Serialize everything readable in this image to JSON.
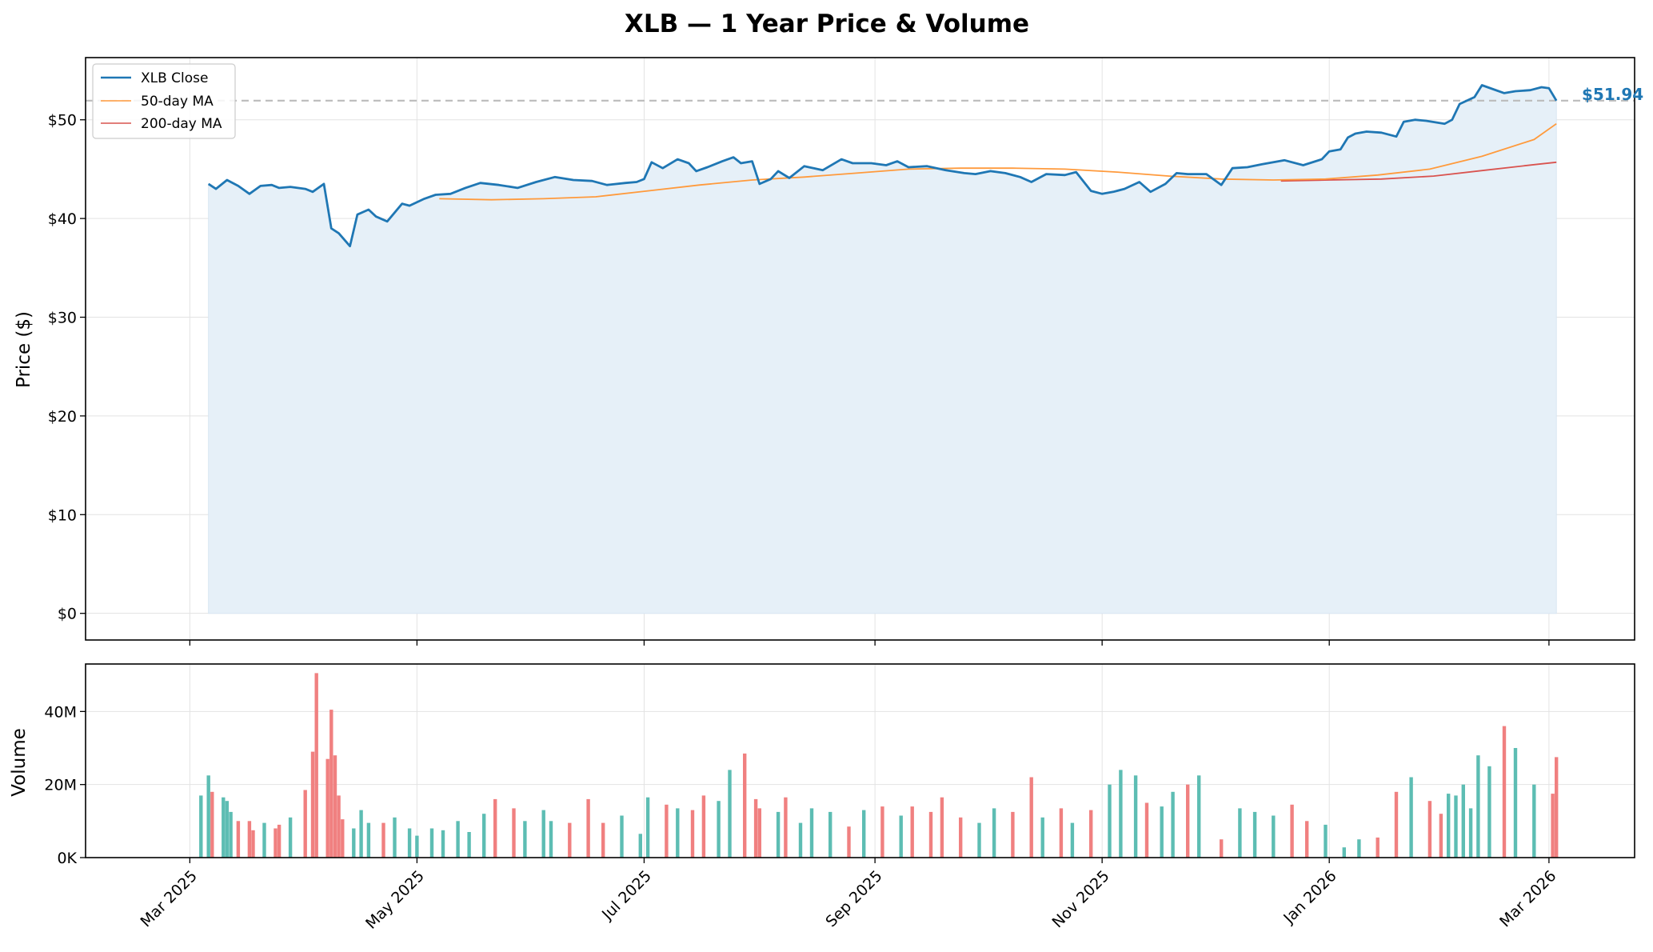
{
  "chart_data": [
    {
      "type": "line",
      "title": "XLB — 1 Year Price & Volume",
      "ylabel": "Price ($)",
      "ylim": [
        -2.7,
        56.3
      ],
      "y_ticks": [
        0,
        10,
        20,
        30,
        40,
        50
      ],
      "y_tick_labels": [
        "$0",
        "$10",
        "$20",
        "$30",
        "$40",
        "$50"
      ],
      "xlim": [
        "2025-02-01",
        "2026-03-24"
      ],
      "x_ticks": [
        "2025-03-01",
        "2025-05-01",
        "2025-07-01",
        "2025-09-01",
        "2025-11-01",
        "2026-01-01",
        "2026-03-01"
      ],
      "x_tick_labels": [
        "Mar 2025",
        "May 2025",
        "Jul 2025",
        "Sep 2025",
        "Nov 2025",
        "Jan 2026",
        "Mar 2026"
      ],
      "grid": true,
      "legend_position": "top-left",
      "last_price": 51.94,
      "last_price_label": "$51.94",
      "colors": {
        "close": "#1f77b4",
        "ma50": "#ff9a3c",
        "ma200": "#d9534f",
        "fill": "#e6f0f8",
        "ref_line": "#bbbbbb"
      },
      "series": [
        {
          "name": "XLB Close",
          "x": [
            "2025-03-06",
            "2025-03-08",
            "2025-03-11",
            "2025-03-12",
            "2025-03-14",
            "2025-03-17",
            "2025-03-20",
            "2025-03-23",
            "2025-03-25",
            "2025-03-28",
            "2025-04-01",
            "2025-04-03",
            "2025-04-06",
            "2025-04-08",
            "2025-04-10",
            "2025-04-13",
            "2025-04-15",
            "2025-04-18",
            "2025-04-20",
            "2025-04-23",
            "2025-04-27",
            "2025-04-29",
            "2025-05-03",
            "2025-05-06",
            "2025-05-10",
            "2025-05-14",
            "2025-05-18",
            "2025-05-23",
            "2025-05-28",
            "2025-06-02",
            "2025-06-07",
            "2025-06-12",
            "2025-06-17",
            "2025-06-21",
            "2025-06-26",
            "2025-06-29",
            "2025-07-01",
            "2025-07-03",
            "2025-07-06",
            "2025-07-10",
            "2025-07-13",
            "2025-07-15",
            "2025-07-18",
            "2025-07-22",
            "2025-07-25",
            "2025-07-27",
            "2025-07-30",
            "2025-08-01",
            "2025-08-04",
            "2025-08-06",
            "2025-08-09",
            "2025-08-13",
            "2025-08-18",
            "2025-08-23",
            "2025-08-26",
            "2025-08-31",
            "2025-09-04",
            "2025-09-07",
            "2025-09-10",
            "2025-09-15",
            "2025-09-20",
            "2025-09-25",
            "2025-09-28",
            "2025-10-02",
            "2025-10-06",
            "2025-10-10",
            "2025-10-13",
            "2025-10-17",
            "2025-10-22",
            "2025-10-25",
            "2025-10-29",
            "2025-11-01",
            "2025-11-04",
            "2025-11-07",
            "2025-11-11",
            "2025-11-14",
            "2025-11-18",
            "2025-11-21",
            "2025-11-24",
            "2025-11-29",
            "2025-12-03",
            "2025-12-06",
            "2025-12-10",
            "2025-12-14",
            "2025-12-20",
            "2025-12-25",
            "2025-12-30",
            "2026-01-01",
            "2026-01-04",
            "2026-01-06",
            "2026-01-08",
            "2026-01-11",
            "2026-01-15",
            "2026-01-19",
            "2026-01-21",
            "2026-01-24",
            "2026-01-27",
            "2026-02-01",
            "2026-02-03",
            "2026-02-05",
            "2026-02-09",
            "2026-02-11",
            "2026-02-14",
            "2026-02-17",
            "2026-02-20",
            "2026-02-24",
            "2026-02-27",
            "2026-03-01",
            "2026-03-03"
          ],
          "values": [
            43.5,
            43.0,
            43.9,
            43.7,
            43.3,
            42.5,
            43.3,
            43.4,
            43.1,
            43.2,
            43.0,
            42.7,
            43.5,
            39.0,
            38.5,
            37.2,
            40.4,
            40.9,
            40.2,
            39.7,
            41.5,
            41.3,
            42.0,
            42.4,
            42.5,
            43.1,
            43.6,
            43.4,
            43.1,
            43.7,
            44.2,
            43.9,
            43.8,
            43.4,
            43.6,
            43.7,
            44.0,
            45.7,
            45.1,
            46.0,
            45.6,
            44.8,
            45.2,
            45.8,
            46.2,
            45.6,
            45.8,
            43.5,
            44.0,
            44.8,
            44.1,
            45.3,
            44.9,
            46.0,
            45.6,
            45.6,
            45.4,
            45.8,
            45.2,
            45.3,
            44.9,
            44.6,
            44.5,
            44.8,
            44.6,
            44.2,
            43.7,
            44.5,
            44.4,
            44.7,
            42.8,
            42.5,
            42.7,
            43.0,
            43.7,
            42.7,
            43.5,
            44.6,
            44.5,
            44.5,
            43.4,
            45.1,
            45.2,
            45.5,
            45.9,
            45.4,
            46.0,
            46.8,
            47.0,
            48.2,
            48.6,
            48.8,
            48.7,
            48.3,
            49.8,
            50.0,
            49.9,
            49.6,
            50.0,
            51.6,
            52.3,
            53.5,
            53.1,
            52.7,
            52.9,
            53.0,
            53.3,
            53.2,
            51.94
          ]
        },
        {
          "name": "50-day MA",
          "x": [
            "2025-05-07",
            "2025-05-21",
            "2025-06-04",
            "2025-06-18",
            "2025-07-02",
            "2025-07-16",
            "2025-07-30",
            "2025-08-13",
            "2025-08-27",
            "2025-09-10",
            "2025-09-24",
            "2025-10-08",
            "2025-10-22",
            "2025-11-05",
            "2025-11-19",
            "2025-12-03",
            "2025-12-17",
            "2025-12-31",
            "2026-01-14",
            "2026-01-28",
            "2026-02-11",
            "2026-02-25",
            "2026-03-03"
          ],
          "values": [
            42.0,
            41.9,
            42.0,
            42.2,
            42.8,
            43.4,
            43.9,
            44.2,
            44.6,
            45.0,
            45.1,
            45.1,
            45.0,
            44.7,
            44.3,
            44.0,
            43.9,
            44.0,
            44.4,
            45.0,
            46.3,
            48.0,
            49.6
          ]
        },
        {
          "name": "200-day MA",
          "x": [
            "2025-12-19",
            "2026-01-01",
            "2026-01-15",
            "2026-01-29",
            "2026-02-12",
            "2026-02-26",
            "2026-03-03"
          ],
          "values": [
            43.8,
            43.9,
            44.0,
            44.3,
            44.9,
            45.5,
            45.7
          ]
        }
      ]
    },
    {
      "type": "bar",
      "ylabel": "Volume",
      "ylim": [
        0,
        53000000
      ],
      "y_ticks": [
        0,
        20000000,
        40000000
      ],
      "y_tick_labels": [
        "0K",
        "20M",
        "40M"
      ],
      "grid": true,
      "colors": {
        "up": "#5dbdb3",
        "down": "#f08080"
      },
      "series": [
        {
          "name": "",
          "x": [
            "2025-03-04",
            "2025-03-06",
            "2025-03-07",
            "2025-03-10",
            "2025-03-11",
            "2025-03-12",
            "2025-03-14",
            "2025-03-17",
            "2025-03-18",
            "2025-03-21",
            "2025-03-24",
            "2025-03-25",
            "2025-03-28",
            "2025-04-01",
            "2025-04-03",
            "2025-04-04",
            "2025-04-07",
            "2025-04-08",
            "2025-04-09",
            "2025-04-10",
            "2025-04-11",
            "2025-04-14",
            "2025-04-16",
            "2025-04-18",
            "2025-04-22",
            "2025-04-25",
            "2025-04-29",
            "2025-05-01",
            "2025-05-05",
            "2025-05-08",
            "2025-05-12",
            "2025-05-15",
            "2025-05-19",
            "2025-05-22",
            "2025-05-27",
            "2025-05-30",
            "2025-06-04",
            "2025-06-06",
            "2025-06-11",
            "2025-06-16",
            "2025-06-20",
            "2025-06-25",
            "2025-06-30",
            "2025-07-02",
            "2025-07-07",
            "2025-07-10",
            "2025-07-14",
            "2025-07-17",
            "2025-07-21",
            "2025-07-24",
            "2025-07-28",
            "2025-07-31",
            "2025-08-01",
            "2025-08-06",
            "2025-08-08",
            "2025-08-12",
            "2025-08-15",
            "2025-08-20",
            "2025-08-25",
            "2025-08-29",
            "2025-09-03",
            "2025-09-08",
            "2025-09-11",
            "2025-09-16",
            "2025-09-19",
            "2025-09-24",
            "2025-09-29",
            "2025-10-03",
            "2025-10-08",
            "2025-10-13",
            "2025-10-16",
            "2025-10-21",
            "2025-10-24",
            "2025-10-29",
            "2025-11-03",
            "2025-11-06",
            "2025-11-10",
            "2025-11-13",
            "2025-11-17",
            "2025-11-20",
            "2025-11-24",
            "2025-11-27",
            "2025-12-03",
            "2025-12-08",
            "2025-12-12",
            "2025-12-17",
            "2025-12-22",
            "2025-12-26",
            "2025-12-31",
            "2026-01-05",
            "2026-01-09",
            "2026-01-14",
            "2026-01-19",
            "2026-01-23",
            "2026-01-28",
            "2026-01-31",
            "2026-02-02",
            "2026-02-04",
            "2026-02-06",
            "2026-02-08",
            "2026-02-10",
            "2026-02-13",
            "2026-02-17",
            "2026-02-20",
            "2026-02-25",
            "2026-03-02",
            "2026-03-03"
          ],
          "values": [
            17000000,
            22500000,
            18000000,
            16500000,
            15500000,
            12500000,
            10000000,
            10000000,
            7500000,
            9500000,
            8000000,
            9000000,
            11000000,
            18500000,
            29000000,
            50500000,
            27000000,
            40500000,
            28000000,
            17000000,
            10500000,
            8000000,
            13000000,
            9500000,
            9500000,
            11000000,
            8000000,
            6000000,
            8000000,
            7500000,
            10000000,
            7000000,
            12000000,
            16000000,
            13500000,
            10000000,
            13000000,
            10000000,
            9500000,
            16000000,
            9500000,
            11500000,
            6500000,
            16500000,
            14500000,
            13500000,
            13000000,
            17000000,
            15500000,
            24000000,
            28500000,
            16000000,
            13500000,
            12500000,
            16500000,
            9500000,
            13500000,
            12500000,
            8500000,
            13000000,
            14000000,
            11500000,
            14000000,
            12500000,
            16500000,
            11000000,
            9500000,
            13500000,
            12500000,
            22000000,
            11000000,
            13500000,
            9500000,
            13000000,
            20000000,
            24000000,
            22500000,
            15000000,
            14000000,
            18000000,
            20000000,
            22500000,
            5000000,
            13500000,
            12500000,
            11500000,
            14500000,
            10000000,
            9000000,
            2800000,
            5000000,
            5500000,
            18000000,
            22000000,
            15500000,
            12000000,
            17500000,
            17000000,
            20000000,
            13500000,
            28000000,
            25000000,
            36000000,
            30000000,
            20000000,
            17500000,
            27500000
          ]
        }
      ]
    }
  ]
}
